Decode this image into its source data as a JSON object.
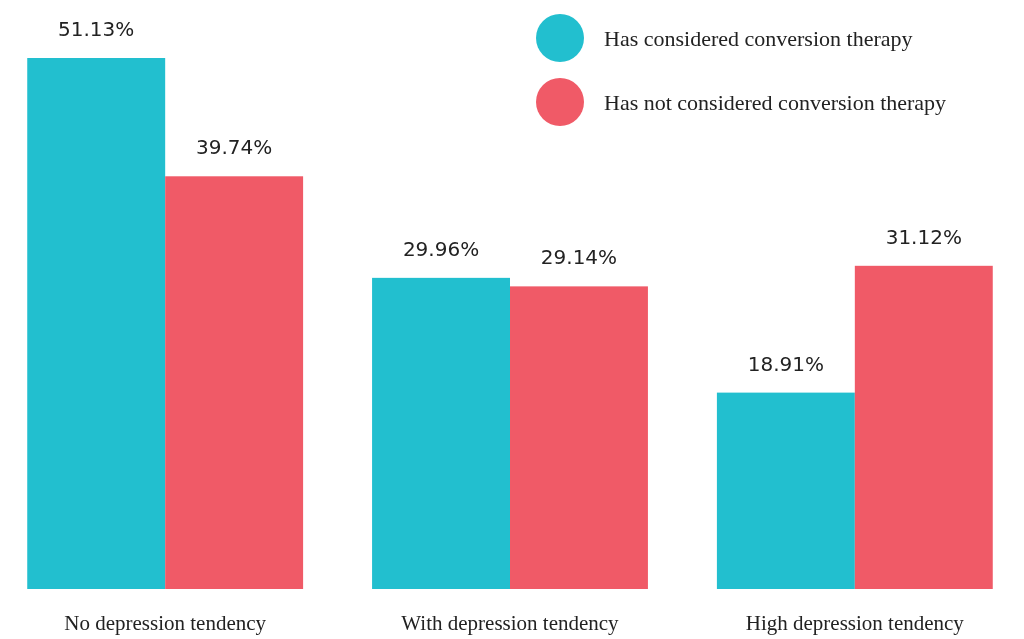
{
  "chart_data": {
    "type": "bar",
    "categories": [
      "No depression tendency",
      "With depression tendency",
      "High depression tendency"
    ],
    "series": [
      {
        "name": "Has considered conversion therapy",
        "color": "#22bfcf",
        "values": [
          51.13,
          29.96,
          18.91
        ],
        "value_labels": [
          "51.13%",
          "29.96%",
          "18.91%"
        ]
      },
      {
        "name": "Has not considered conversion therapy",
        "color": "#f05a67",
        "values": [
          39.74,
          29.14,
          31.12
        ],
        "value_labels": [
          "39.74%",
          "29.14%",
          "31.12%"
        ]
      }
    ],
    "legend": "top right"
  }
}
